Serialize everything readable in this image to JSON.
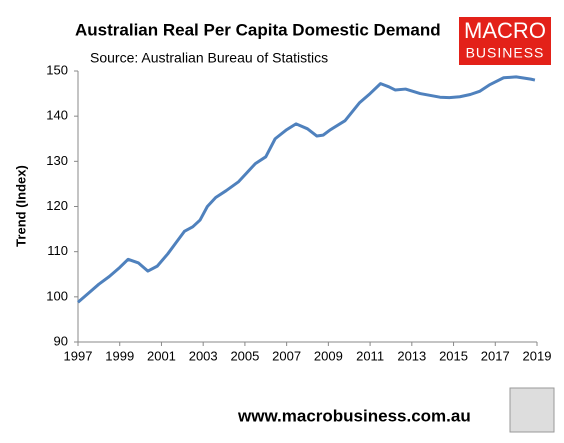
{
  "chart_data": {
    "type": "line",
    "title": "Australian Real Per Capita Domestic Demand",
    "subtitle": "Source: Australian Bureau of Statistics",
    "y_label": "Trend (Index)",
    "logo": [
      "MACRO",
      "BUSINESS"
    ],
    "footer": "www.macrobusiness.com.au",
    "x": [
      1997,
      1997.5,
      1998,
      1998.5,
      1999,
      1999.4,
      1999.9,
      2000.35,
      2000.8,
      2001.3,
      2001.7,
      2002.1,
      2002.5,
      2002.85,
      2003.2,
      2003.6,
      2004.1,
      2004.7,
      2005.1,
      2005.5,
      2006,
      2006.45,
      2007,
      2007.45,
      2008,
      2008.45,
      2008.75,
      2009.1,
      2009.8,
      2010.5,
      2011,
      2011.5,
      2011.9,
      2012.2,
      2012.7,
      2013.4,
      2014.35,
      2014.8,
      2015.3,
      2015.8,
      2016.25,
      2016.75,
      2017.4,
      2018,
      2018.7,
      2018.9
    ],
    "series": [
      {
        "name": "Trend (Index)",
        "color": "#4f81bd",
        "values": [
          98.8,
          100.8,
          102.8,
          104.5,
          106.5,
          108.3,
          107.5,
          105.7,
          106.8,
          109.5,
          112,
          114.5,
          115.5,
          117,
          120,
          122,
          123.5,
          125.5,
          127.5,
          129.5,
          131,
          135,
          137,
          138.3,
          137.2,
          135.6,
          135.8,
          137,
          139,
          143,
          145,
          147.2,
          146.5,
          145.8,
          146,
          145,
          144.2,
          144.1,
          144.3,
          144.8,
          145.5,
          147,
          148.5,
          148.7,
          148.2,
          148
        ]
      }
    ],
    "xlim": [
      1997,
      2019
    ],
    "xticks": [
      1997,
      1999,
      2001,
      2003,
      2005,
      2007,
      2009,
      2011,
      2013,
      2015,
      2017,
      2019
    ],
    "ylim": [
      90,
      150
    ],
    "yticks": [
      90,
      100,
      110,
      120,
      130,
      140,
      150
    ],
    "grid": false
  }
}
